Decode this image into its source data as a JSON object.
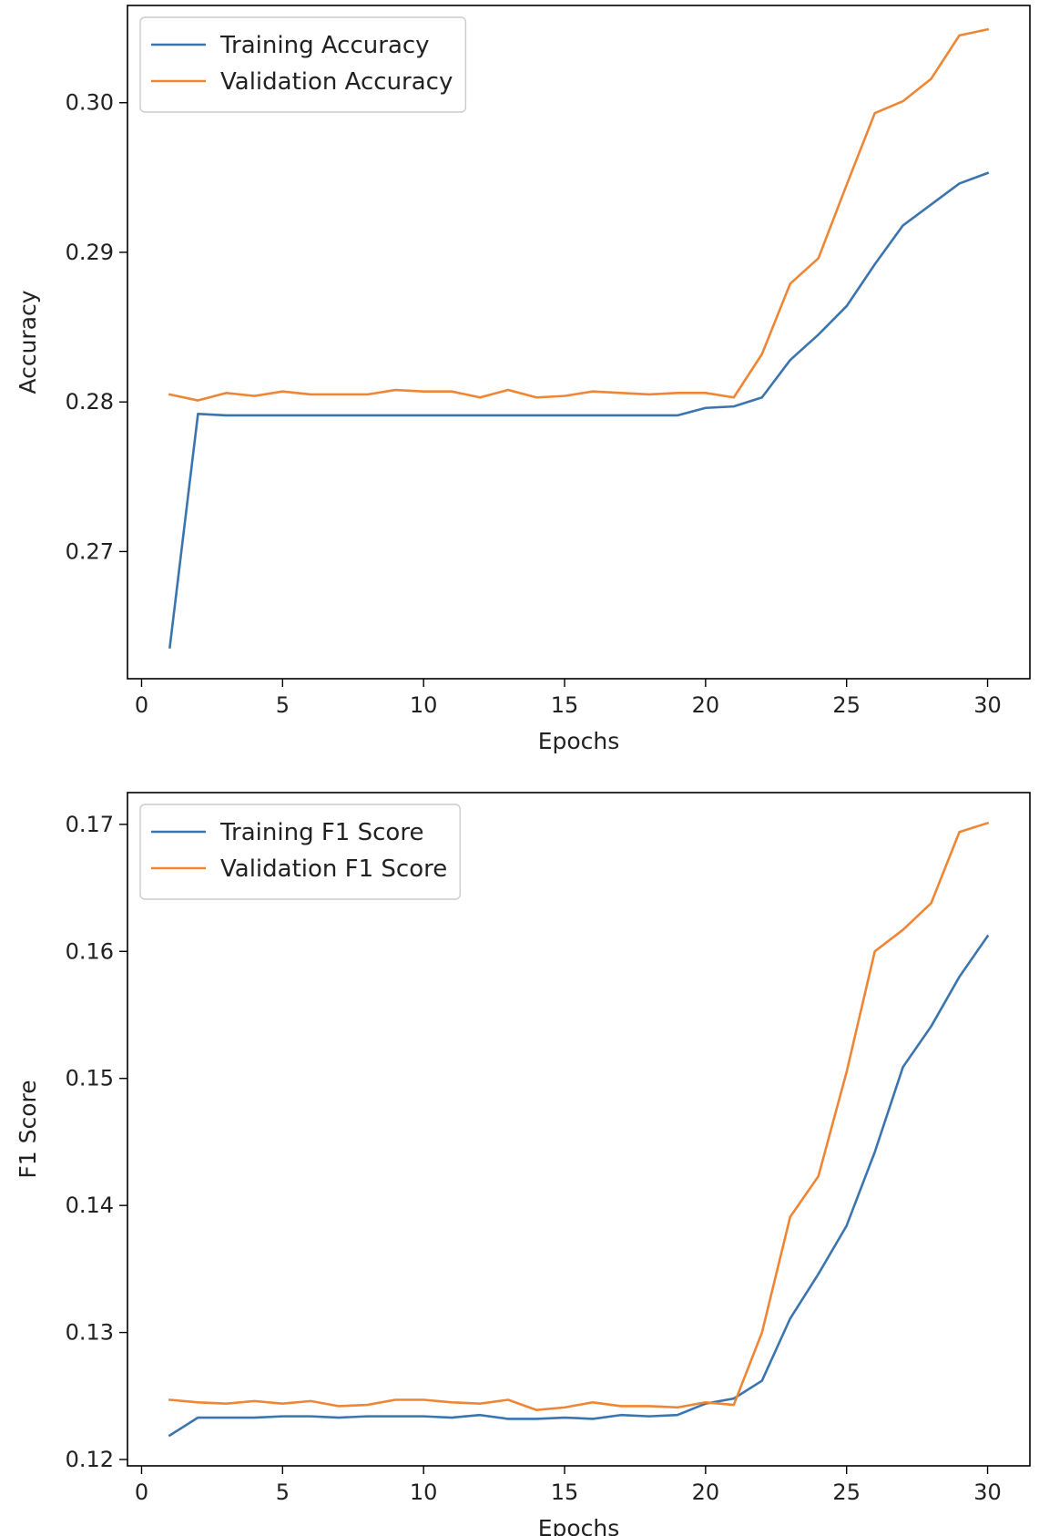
{
  "chart_data": [
    {
      "type": "line",
      "xlabel": "Epochs",
      "ylabel": "Accuracy",
      "xlim": [
        -0.5,
        31.5
      ],
      "ylim": [
        0.2615,
        0.3065
      ],
      "xticks": [
        0,
        5,
        10,
        15,
        20,
        25,
        30
      ],
      "xtick_labels": [
        "0",
        "5",
        "10",
        "15",
        "20",
        "25",
        "30"
      ],
      "yticks": [
        0.27,
        0.28,
        0.29,
        0.3
      ],
      "ytick_labels": [
        "0.27",
        "0.28",
        "0.29",
        "0.30"
      ],
      "legend_position": "upper-left",
      "grid": false,
      "x": [
        1,
        2,
        3,
        4,
        5,
        6,
        7,
        8,
        9,
        10,
        11,
        12,
        13,
        14,
        15,
        16,
        17,
        18,
        19,
        20,
        21,
        22,
        23,
        24,
        25,
        26,
        27,
        28,
        29,
        30
      ],
      "series": [
        {
          "name": "Training Accuracy",
          "color": "#3b75af",
          "values": [
            0.2636,
            0.2792,
            0.2791,
            0.2791,
            0.2791,
            0.2791,
            0.2791,
            0.2791,
            0.2791,
            0.2791,
            0.2791,
            0.2791,
            0.2791,
            0.2791,
            0.2791,
            0.2791,
            0.2791,
            0.2791,
            0.2791,
            0.2796,
            0.2797,
            0.2803,
            0.2828,
            0.2845,
            0.2864,
            0.2892,
            0.2918,
            0.2932,
            0.2946,
            0.2953
          ]
        },
        {
          "name": "Validation Accuracy",
          "color": "#ef8636",
          "values": [
            0.2805,
            0.2801,
            0.2806,
            0.2804,
            0.2807,
            0.2805,
            0.2805,
            0.2805,
            0.2808,
            0.2807,
            0.2807,
            0.2803,
            0.2808,
            0.2803,
            0.2804,
            0.2807,
            0.2806,
            0.2805,
            0.2806,
            0.2806,
            0.2803,
            0.2832,
            0.2879,
            0.2896,
            0.2945,
            0.2993,
            0.3001,
            0.3016,
            0.3045,
            0.3049
          ]
        }
      ]
    },
    {
      "type": "line",
      "xlabel": "Epochs",
      "ylabel": "F1 Score",
      "xlim": [
        -0.5,
        31.5
      ],
      "ylim": [
        0.1195,
        0.1725
      ],
      "xticks": [
        0,
        5,
        10,
        15,
        20,
        25,
        30
      ],
      "xtick_labels": [
        "0",
        "5",
        "10",
        "15",
        "20",
        "25",
        "30"
      ],
      "yticks": [
        0.12,
        0.13,
        0.14,
        0.15,
        0.16,
        0.17
      ],
      "ytick_labels": [
        "0.12",
        "0.13",
        "0.14",
        "0.15",
        "0.16",
        "0.17"
      ],
      "legend_position": "upper-left",
      "grid": false,
      "x": [
        1,
        2,
        3,
        4,
        5,
        6,
        7,
        8,
        9,
        10,
        11,
        12,
        13,
        14,
        15,
        16,
        17,
        18,
        19,
        20,
        21,
        22,
        23,
        24,
        25,
        26,
        27,
        28,
        29,
        30
      ],
      "series": [
        {
          "name": "Training F1 Score",
          "color": "#3b75af",
          "values": [
            0.1219,
            0.1233,
            0.1233,
            0.1233,
            0.1234,
            0.1234,
            0.1233,
            0.1234,
            0.1234,
            0.1234,
            0.1233,
            0.1235,
            0.1232,
            0.1232,
            0.1233,
            0.1232,
            0.1235,
            0.1234,
            0.1235,
            0.1244,
            0.1248,
            0.1262,
            0.1311,
            0.1346,
            0.1384,
            0.1442,
            0.1509,
            0.1541,
            0.158,
            0.1612
          ]
        },
        {
          "name": "Validation F1 Score",
          "color": "#ef8636",
          "values": [
            0.1247,
            0.1245,
            0.1244,
            0.1246,
            0.1244,
            0.1246,
            0.1242,
            0.1243,
            0.1247,
            0.1247,
            0.1245,
            0.1244,
            0.1247,
            0.1239,
            0.1241,
            0.1245,
            0.1242,
            0.1242,
            0.1241,
            0.1245,
            0.1243,
            0.13,
            0.1391,
            0.1423,
            0.1505,
            0.16,
            0.1617,
            0.1638,
            0.1694,
            0.1701
          ]
        }
      ]
    }
  ]
}
